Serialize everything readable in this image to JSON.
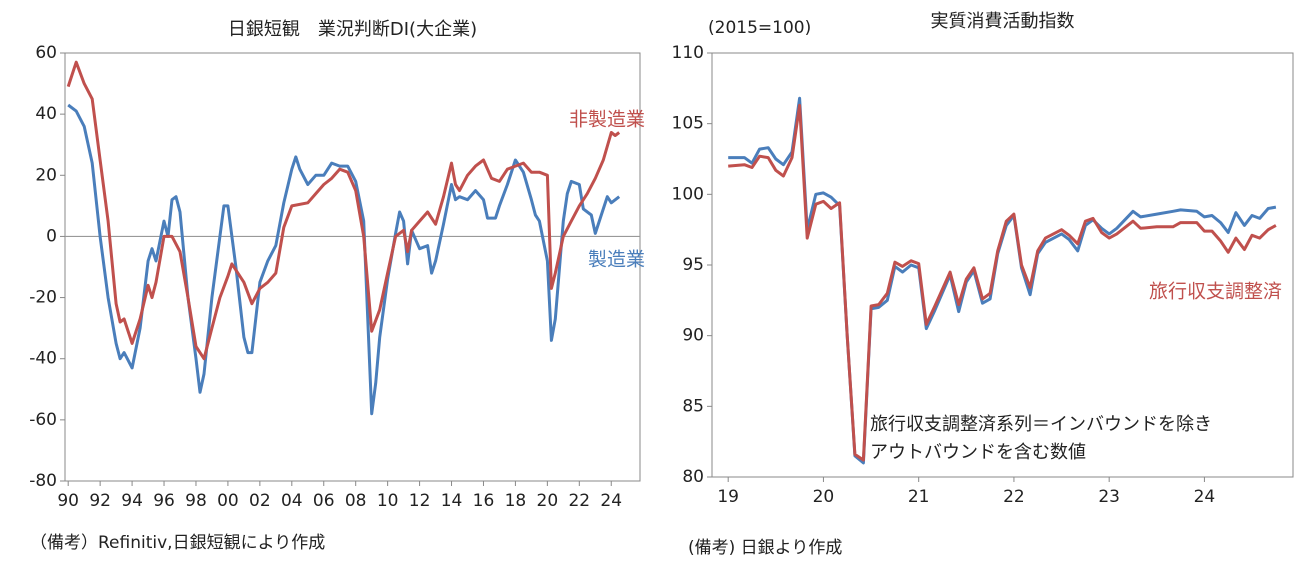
{
  "chart_data": [
    {
      "type": "line",
      "title": "日銀短観　業況判断DI(大企業)",
      "note": "（備考）Refinitiv,日銀短観により作成",
      "xlim": [
        1989.8,
        2025.8
      ],
      "ylim": [
        -80,
        60
      ],
      "yticks": [
        -80,
        -60,
        -40,
        -20,
        0,
        20,
        40,
        60
      ],
      "xticks": [
        {
          "value": 1990,
          "label": "90"
        },
        {
          "value": 1992,
          "label": "92"
        },
        {
          "value": 1994,
          "label": "94"
        },
        {
          "value": 1996,
          "label": "96"
        },
        {
          "value": 1998,
          "label": "98"
        },
        {
          "value": 2000,
          "label": "00"
        },
        {
          "value": 2002,
          "label": "02"
        },
        {
          "value": 2004,
          "label": "04"
        },
        {
          "value": 2006,
          "label": "06"
        },
        {
          "value": 2008,
          "label": "08"
        },
        {
          "value": 2010,
          "label": "10"
        },
        {
          "value": 2012,
          "label": "12"
        },
        {
          "value": 2014,
          "label": "14"
        },
        {
          "value": 2016,
          "label": "16"
        },
        {
          "value": 2018,
          "label": "18"
        },
        {
          "value": 2020,
          "label": "20"
        },
        {
          "value": 2022,
          "label": "22"
        },
        {
          "value": 2024,
          "label": "24"
        }
      ],
      "series": [
        {
          "name": "製造業",
          "color": "#4a7ebb",
          "x": [
            1990,
            1990.5,
            1991,
            1991.5,
            1992,
            1992.5,
            1993,
            1993.25,
            1993.5,
            1994,
            1994.5,
            1995,
            1995.25,
            1995.5,
            1996,
            1996.25,
            1996.5,
            1996.75,
            1997,
            1997.5,
            1998,
            1998.25,
            1998.5,
            1999,
            1999.5,
            1999.75,
            2000,
            2000.5,
            2001,
            2001.25,
            2001.5,
            2002,
            2002.5,
            2003,
            2003.5,
            2004,
            2004.25,
            2004.5,
            2005,
            2005.5,
            2006,
            2006.5,
            2007,
            2007.5,
            2008,
            2008.5,
            2009,
            2009.25,
            2009.5,
            2010,
            2010.5,
            2010.75,
            2011,
            2011.25,
            2011.5,
            2012,
            2012.5,
            2012.75,
            2013,
            2013.5,
            2014,
            2014.25,
            2014.5,
            2015,
            2015.5,
            2016,
            2016.25,
            2016.75,
            2017,
            2017.5,
            2018,
            2018.5,
            2019,
            2019.25,
            2019.5,
            2020,
            2020.25,
            2020.5,
            2021,
            2021.25,
            2021.5,
            2022,
            2022.25,
            2022.75,
            2023,
            2023.5,
            2023.75,
            2024,
            2024.5
          ],
          "values": [
            43,
            41,
            36,
            24,
            0,
            -20,
            -35,
            -40,
            -38,
            -43,
            -30,
            -8,
            -4,
            -8,
            5,
            0,
            12,
            13,
            8,
            -20,
            -40,
            -51,
            -45,
            -20,
            0,
            10,
            10,
            -10,
            -33,
            -38,
            -38,
            -15,
            -8,
            -3,
            11,
            22,
            26,
            22,
            17,
            20,
            20,
            24,
            23,
            23,
            18,
            5,
            -58,
            -48,
            -33,
            -14,
            1,
            8,
            5,
            -9,
            2,
            -4,
            -3,
            -12,
            -8,
            4,
            17,
            12,
            13,
            12,
            15,
            12,
            6,
            6,
            10,
            17,
            25,
            21,
            12,
            7,
            5,
            -8,
            -34,
            -27,
            5,
            14,
            18,
            17,
            9,
            7,
            1,
            9,
            13,
            11,
            13
          ]
        },
        {
          "name": "非製造業",
          "color": "#c0504d",
          "x": [
            1990,
            1990.25,
            1990.5,
            1991,
            1991.5,
            1992,
            1992.5,
            1993,
            1993.25,
            1993.5,
            1994,
            1994.5,
            1995,
            1995.25,
            1995.5,
            1996,
            1996.5,
            1997,
            1997.5,
            1998,
            1998.5,
            1999,
            1999.5,
            2000,
            2000.25,
            2001,
            2001.5,
            2002,
            2002.5,
            2003,
            2003.5,
            2004,
            2005,
            2005.5,
            2006,
            2006.5,
            2007,
            2007.5,
            2008,
            2008.5,
            2009,
            2009.5,
            2010,
            2010.5,
            2011,
            2011.25,
            2011.5,
            2012,
            2012.5,
            2013,
            2013.5,
            2014,
            2014.25,
            2014.5,
            2015,
            2015.5,
            2016,
            2016.5,
            2017,
            2017.5,
            2018,
            2018.5,
            2019,
            2019.5,
            2020,
            2020.25,
            2020.5,
            2021,
            2021.5,
            2022,
            2022.5,
            2023,
            2023.5,
            2024,
            2024.25,
            2024.5
          ],
          "values": [
            49,
            53,
            57,
            50,
            45,
            25,
            5,
            -22,
            -28,
            -27,
            -35,
            -27,
            -16,
            -20,
            -15,
            0,
            0,
            -5,
            -20,
            -36,
            -40,
            -30,
            -20,
            -13,
            -9,
            -15,
            -22,
            -17,
            -15,
            -12,
            3,
            10,
            11,
            14,
            17,
            19,
            22,
            21,
            15,
            0,
            -31,
            -24,
            -12,
            0,
            2,
            -5,
            2,
            5,
            8,
            4,
            13,
            24,
            17,
            15,
            20,
            23,
            25,
            19,
            18,
            22,
            23,
            24,
            21,
            21,
            20,
            -17,
            -12,
            0,
            5,
            10,
            14,
            19,
            25,
            34,
            33,
            34
          ]
        }
      ]
    },
    {
      "type": "line",
      "title": "実質消費活動指数",
      "y_label": "(2015=100)",
      "note": "(備考) 日銀より作成",
      "annotation": [
        "旅行収支調整済系列＝インバウンドを除き",
        "アウトバウンドを含む数値"
      ],
      "xlim": [
        2018.83,
        2024.93
      ],
      "ylim": [
        80,
        110
      ],
      "yticks": [
        80,
        85,
        90,
        95,
        100,
        105,
        110
      ],
      "xticks": [
        {
          "value": 2019,
          "label": "19"
        },
        {
          "value": 2020,
          "label": "20"
        },
        {
          "value": 2021,
          "label": "21"
        },
        {
          "value": 2022,
          "label": "22"
        },
        {
          "value": 2023,
          "label": "23"
        },
        {
          "value": 2024,
          "label": "24"
        }
      ],
      "series": [
        {
          "color": "#4a7ebb",
          "x": [
            2019,
            2019.17,
            2019.25,
            2019.33,
            2019.42,
            2019.5,
            2019.58,
            2019.67,
            2019.75,
            2019.83,
            2019.92,
            2020,
            2020.08,
            2020.17,
            2020.25,
            2020.33,
            2020.42,
            2020.5,
            2020.58,
            2020.67,
            2020.75,
            2020.83,
            2020.92,
            2021,
            2021.08,
            2021.17,
            2021.33,
            2021.42,
            2021.5,
            2021.58,
            2021.67,
            2021.75,
            2021.83,
            2021.92,
            2022,
            2022.08,
            2022.17,
            2022.25,
            2022.33,
            2022.5,
            2022.58,
            2022.67,
            2022.75,
            2022.83,
            2022.92,
            2023,
            2023.08,
            2023.25,
            2023.33,
            2023.5,
            2023.67,
            2023.75,
            2023.92,
            2024,
            2024.08,
            2024.17,
            2024.25,
            2024.33,
            2024.42,
            2024.5,
            2024.58,
            2024.67,
            2024.75
          ],
          "values": [
            102.6,
            102.6,
            102.2,
            103.2,
            103.3,
            102.5,
            102.1,
            103,
            106.8,
            97.5,
            100,
            100.1,
            99.8,
            99.2,
            90,
            81.5,
            81,
            91.9,
            92,
            92.5,
            94.9,
            94.5,
            95,
            94.8,
            90.5,
            91.8,
            94.3,
            91.7,
            93.8,
            94.6,
            92.3,
            92.6,
            95.8,
            97.8,
            98.5,
            94.8,
            92.9,
            95.8,
            96.6,
            97.2,
            96.8,
            96,
            97.8,
            98.2,
            97.6,
            97.2,
            97.6,
            98.8,
            98.4,
            98.6,
            98.8,
            98.9,
            98.8,
            98.4,
            98.5,
            98,
            97.3,
            98.7,
            97.8,
            98.5,
            98.3,
            99,
            99.1
          ]
        },
        {
          "name": "旅行収支調整済",
          "color": "#c0504d",
          "x": [
            2019,
            2019.17,
            2019.25,
            2019.33,
            2019.42,
            2019.5,
            2019.58,
            2019.67,
            2019.75,
            2019.83,
            2019.92,
            2020,
            2020.08,
            2020.17,
            2020.25,
            2020.33,
            2020.42,
            2020.5,
            2020.58,
            2020.67,
            2020.75,
            2020.83,
            2020.92,
            2021,
            2021.08,
            2021.17,
            2021.33,
            2021.42,
            2021.5,
            2021.58,
            2021.67,
            2021.75,
            2021.83,
            2021.92,
            2022,
            2022.08,
            2022.17,
            2022.25,
            2022.33,
            2022.5,
            2022.58,
            2022.67,
            2022.75,
            2022.83,
            2022.92,
            2023,
            2023.08,
            2023.25,
            2023.33,
            2023.5,
            2023.67,
            2023.75,
            2023.92,
            2024,
            2024.08,
            2024.17,
            2024.25,
            2024.33,
            2024.42,
            2024.5,
            2024.58,
            2024.67,
            2024.75
          ],
          "values": [
            102,
            102.1,
            101.9,
            102.7,
            102.6,
            101.7,
            101.3,
            102.6,
            106.3,
            96.9,
            99.3,
            99.5,
            99,
            99.4,
            90,
            81.6,
            81.2,
            92.1,
            92.2,
            93,
            95.2,
            94.9,
            95.3,
            95.1,
            90.8,
            92.1,
            94.5,
            92.2,
            94,
            94.8,
            92.6,
            93,
            96,
            98.1,
            98.6,
            95,
            93.4,
            96,
            96.9,
            97.5,
            97.1,
            96.5,
            98.1,
            98.3,
            97.3,
            96.9,
            97.2,
            98.1,
            97.6,
            97.7,
            97.7,
            98,
            98,
            97.4,
            97.4,
            96.7,
            95.9,
            96.9,
            96.1,
            97.1,
            96.9,
            97.5,
            97.8
          ]
        }
      ]
    }
  ]
}
